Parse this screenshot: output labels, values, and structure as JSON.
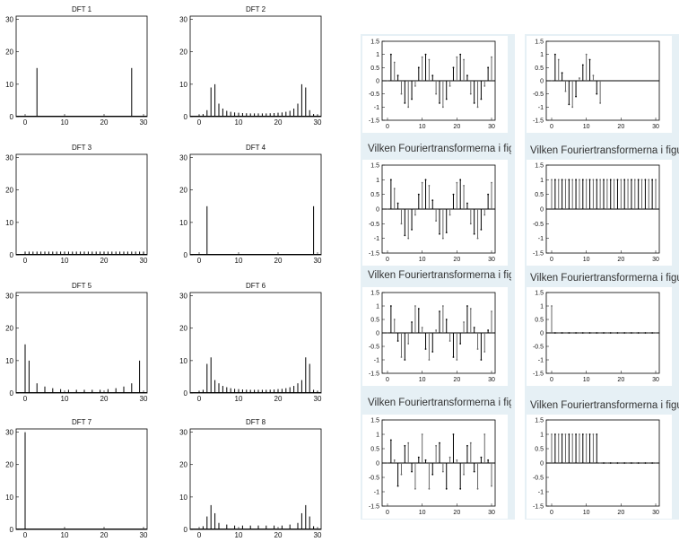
{
  "left_panel": {
    "dfts": [
      {
        "title": "DFT 1",
        "n": 31,
        "spikes": [
          [
            3,
            15
          ],
          [
            27,
            15
          ]
        ]
      },
      {
        "title": "DFT 2",
        "n": 31,
        "spikes": [
          [
            0,
            0.5
          ],
          [
            1,
            0.8
          ],
          [
            2,
            2
          ],
          [
            3,
            9
          ],
          [
            4,
            10
          ],
          [
            5,
            4
          ],
          [
            6,
            2.5
          ],
          [
            7,
            1.8
          ],
          [
            8,
            1.5
          ],
          [
            9,
            1.3
          ],
          [
            10,
            1.2
          ],
          [
            11,
            1.1
          ],
          [
            12,
            1.05
          ],
          [
            13,
            1
          ],
          [
            14,
            1
          ],
          [
            15,
            1
          ],
          [
            16,
            1
          ],
          [
            17,
            1
          ],
          [
            18,
            1.05
          ],
          [
            19,
            1.1
          ],
          [
            20,
            1.2
          ],
          [
            21,
            1.3
          ],
          [
            22,
            1.5
          ],
          [
            23,
            1.8
          ],
          [
            24,
            2.5
          ],
          [
            25,
            4
          ],
          [
            26,
            10
          ],
          [
            27,
            9
          ],
          [
            28,
            2
          ],
          [
            29,
            0.8
          ],
          [
            30,
            0.5
          ]
        ]
      },
      {
        "title": "DFT 3",
        "n": 31,
        "spikes": [
          [
            0,
            1
          ],
          [
            1,
            1
          ],
          [
            2,
            1
          ],
          [
            3,
            1
          ],
          [
            4,
            1
          ],
          [
            5,
            1
          ],
          [
            6,
            1
          ],
          [
            7,
            1
          ],
          [
            8,
            1
          ],
          [
            9,
            1
          ],
          [
            10,
            1
          ],
          [
            11,
            1
          ],
          [
            12,
            1
          ],
          [
            13,
            1
          ],
          [
            14,
            1
          ],
          [
            15,
            1
          ],
          [
            16,
            1
          ],
          [
            17,
            1
          ],
          [
            18,
            1
          ],
          [
            19,
            1
          ],
          [
            20,
            1
          ],
          [
            21,
            1
          ],
          [
            22,
            1
          ],
          [
            23,
            1
          ],
          [
            24,
            1
          ],
          [
            25,
            1
          ],
          [
            26,
            1
          ],
          [
            27,
            1
          ],
          [
            28,
            1
          ],
          [
            29,
            1
          ],
          [
            30,
            1
          ]
        ]
      },
      {
        "title": "DFT 4",
        "n": 31,
        "spikes": [
          [
            2,
            15
          ],
          [
            29,
            15
          ]
        ]
      },
      {
        "title": "DFT 5",
        "n": 31,
        "spikes": [
          [
            0,
            15
          ],
          [
            1,
            10
          ],
          [
            3,
            3
          ],
          [
            5,
            2
          ],
          [
            7,
            1.5
          ],
          [
            9,
            1.2
          ],
          [
            11,
            1
          ],
          [
            13,
            1
          ],
          [
            15,
            1
          ],
          [
            17,
            1
          ],
          [
            19,
            1
          ],
          [
            21,
            1.2
          ],
          [
            23,
            1.5
          ],
          [
            25,
            2
          ],
          [
            27,
            3
          ],
          [
            29,
            10
          ]
        ]
      },
      {
        "title": "DFT 6",
        "n": 31,
        "spikes": [
          [
            0,
            0.5
          ],
          [
            1,
            1
          ],
          [
            2,
            9
          ],
          [
            3,
            11
          ],
          [
            4,
            4
          ],
          [
            5,
            3
          ],
          [
            6,
            2.2
          ],
          [
            7,
            1.8
          ],
          [
            8,
            1.5
          ],
          [
            9,
            1.3
          ],
          [
            10,
            1.2
          ],
          [
            11,
            1.1
          ],
          [
            12,
            1.05
          ],
          [
            13,
            1
          ],
          [
            14,
            1
          ],
          [
            15,
            1
          ],
          [
            16,
            1
          ],
          [
            17,
            1
          ],
          [
            18,
            1.05
          ],
          [
            19,
            1.1
          ],
          [
            20,
            1.2
          ],
          [
            21,
            1.3
          ],
          [
            22,
            1.5
          ],
          [
            23,
            1.8
          ],
          [
            24,
            2.2
          ],
          [
            25,
            3
          ],
          [
            26,
            4
          ],
          [
            27,
            11
          ],
          [
            28,
            9
          ],
          [
            29,
            1
          ],
          [
            30,
            0.5
          ]
        ]
      },
      {
        "title": "DFT 7",
        "n": 31,
        "spikes": [
          [
            0,
            30
          ]
        ]
      },
      {
        "title": "DFT 8",
        "n": 31,
        "spikes": [
          [
            1,
            1
          ],
          [
            2,
            4
          ],
          [
            3,
            7.5
          ],
          [
            4,
            5
          ],
          [
            5,
            2
          ],
          [
            7,
            1.5
          ],
          [
            9,
            1.2
          ],
          [
            11,
            1.2
          ],
          [
            13,
            1.2
          ],
          [
            15,
            1.2
          ],
          [
            17,
            1.2
          ],
          [
            19,
            1.2
          ],
          [
            21,
            1.2
          ],
          [
            23,
            1.5
          ],
          [
            25,
            2
          ],
          [
            26,
            5
          ],
          [
            27,
            7.5
          ],
          [
            28,
            4
          ],
          [
            29,
            1
          ]
        ]
      }
    ]
  },
  "stems": [
    {
      "n": 31,
      "values": [
        0,
        1.0,
        0.7,
        0.2,
        -0.5,
        -0.85,
        -1.0,
        -0.7,
        -0.2,
        0.5,
        0.9,
        1.0,
        0.8,
        0.2,
        -0.5,
        -0.85,
        -1.0,
        -0.7,
        -0.2,
        0.5,
        0.9,
        1.0,
        0.8,
        0.2,
        -0.5,
        -0.85,
        -1.0,
        -0.7,
        -0.2,
        0.5,
        0.9
      ]
    },
    {
      "n": 15,
      "values": [
        0,
        1.0,
        0.8,
        0.3,
        -0.4,
        -0.9,
        -1.0,
        -0.6,
        0.1,
        0.6,
        1.0,
        0.8,
        0.2,
        -0.5,
        -0.85
      ]
    },
    {
      "n": 31,
      "values": [
        0,
        1.0,
        0.7,
        0.2,
        -0.5,
        -0.9,
        -1.0,
        -0.7,
        -0.2,
        0.5,
        0.9,
        1.0,
        0.8,
        0.3,
        -0.4,
        -0.85,
        -1.0,
        -0.8,
        -0.2,
        0.5,
        0.9,
        1.0,
        0.8,
        0.2,
        -0.5,
        -0.85,
        -1.0,
        -0.7,
        -0.2,
        0.5,
        0.9
      ]
    },
    {
      "n": 31,
      "values": [
        1,
        1,
        1,
        1,
        1,
        1,
        1,
        1,
        1,
        1,
        1,
        1,
        1,
        1,
        1,
        1,
        1,
        1,
        1,
        1,
        1,
        1,
        1,
        1,
        1,
        1,
        1,
        1,
        1,
        1,
        1
      ]
    },
    {
      "n": 31,
      "values": [
        0,
        1.0,
        0.5,
        -0.3,
        -0.9,
        -1.0,
        -0.4,
        0.4,
        1.0,
        0.9,
        0.2,
        -0.6,
        -1.0,
        -0.7,
        0.1,
        0.8,
        1.0,
        0.5,
        -0.3,
        -0.9,
        -1.0,
        -0.4,
        0.4,
        1.0,
        0.9,
        0.2,
        -0.6,
        -1.0,
        -0.7,
        0.1,
        0.8
      ]
    },
    {
      "n": 31,
      "values": [
        1,
        0,
        0,
        0,
        0,
        0,
        0,
        0,
        0,
        0,
        0,
        0,
        0,
        0,
        0,
        0,
        0,
        0,
        0,
        0,
        0,
        0,
        0,
        0,
        0,
        0,
        0,
        0,
        0,
        0,
        0
      ]
    },
    {
      "n": 31,
      "values": [
        0,
        0.8,
        0.1,
        -0.8,
        -0.4,
        0.6,
        0.7,
        -0.3,
        -0.9,
        0.2,
        1.0,
        0.1,
        -0.9,
        -0.4,
        0.6,
        0.7,
        -0.3,
        -0.9,
        0.2,
        1.0,
        0.1,
        -0.9,
        -0.4,
        0.6,
        0.7,
        -0.3,
        -0.9,
        0.2,
        1.0,
        0.1,
        -0.8
      ]
    },
    {
      "n": 31,
      "values": [
        1,
        1,
        1,
        1,
        1,
        1,
        1,
        1,
        1,
        1,
        1,
        1,
        1,
        1,
        0,
        0,
        0,
        0,
        0,
        0,
        0,
        0,
        0,
        0,
        0,
        0,
        0,
        0,
        0,
        0,
        0
      ]
    }
  ],
  "captions": [
    "Vilken Fouriertransformerna i fig",
    "Vilken Fouriertransformerna i figu",
    "Vilken Fouriertransformerna i fig",
    "Vilken Fouriertransformerna i figu",
    "Vilken Fouriertransformerna i fig",
    "Vilken Fouriertransformerna i figu"
  ],
  "axes": {
    "dft_yticks": [
      "0",
      "10",
      "20",
      "30"
    ],
    "dft_xticks": [
      "0",
      "10",
      "20",
      "30"
    ],
    "stem_yticks": [
      "1.5",
      "1",
      "0.5",
      "0",
      "-0.5",
      "-1",
      "-1.5"
    ],
    "stem_xticks": [
      "0",
      "10",
      "20",
      "30"
    ]
  }
}
